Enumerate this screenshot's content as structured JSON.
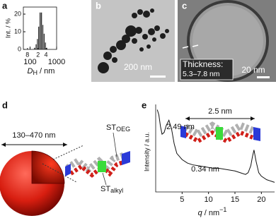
{
  "panel_labels": [
    "a",
    "b",
    "c",
    "d",
    "e"
  ],
  "chart_data": [
    {
      "type": "histogram",
      "ylabel": "Int. / %",
      "xlabel": {
        "main": "D",
        "sub": "H",
        "rest": " / nm"
      },
      "bins": [
        140,
        160,
        180,
        200,
        225,
        255,
        285,
        320,
        360,
        400,
        450
      ],
      "counts": [
        1,
        3,
        6,
        13,
        21,
        21,
        14,
        9,
        4,
        1
      ],
      "color": "#2a2a2a",
      "xscale": "log",
      "xlim": [
        56,
        1000
      ],
      "xticks": [
        {
          "value": 80,
          "label": "8"
        },
        100,
        {
          "value": 200,
          "label": "2"
        },
        {
          "value": 400,
          "label": "4"
        },
        1000
      ],
      "ylim": [
        0,
        24
      ],
      "yticks": [
        0,
        10,
        20
      ]
    },
    {
      "type": "line",
      "ylabel": "Intensity / a.u.",
      "xlabel": {
        "main": "q",
        "rest": " / nm",
        "sup": "−1"
      },
      "x": [
        0.3,
        0.6,
        0.9,
        1.2,
        1.6,
        2.0,
        2.5,
        3.0,
        3.5,
        4,
        5,
        6,
        7,
        8,
        9,
        10,
        11,
        12,
        13,
        14,
        15,
        16,
        17,
        17.5,
        18,
        18.3,
        18.6,
        19,
        19.5,
        20,
        21,
        22,
        22.5
      ],
      "values": [
        94,
        88,
        75,
        66,
        68,
        76,
        82,
        72,
        55,
        44,
        37,
        33,
        31,
        30,
        29,
        28,
        27,
        27,
        26,
        25,
        24,
        22,
        20,
        22,
        30,
        40,
        48,
        35,
        22,
        18,
        14,
        12,
        11
      ],
      "color": "#111111",
      "xlim": [
        0,
        22.5
      ],
      "xticks": [
        5,
        10,
        15,
        20
      ],
      "ylim": [
        0,
        100
      ],
      "annotations": [
        "2.49 nm",
        "0.34 nm",
        "2.5 nm"
      ]
    }
  ],
  "panel_b": {
    "scale_bar": "200 nm"
  },
  "panel_c": {
    "scale_bar": "20 nm",
    "thickness_label": "Thickness:",
    "thickness_value": "5.3–7.8 nm"
  },
  "panel_d": {
    "diameter": "130–470 nm",
    "st_oeg": {
      "main": "ST",
      "sub": "OEG"
    },
    "st_alkyl": {
      "main": "ST",
      "sub": "alkyl"
    }
  }
}
